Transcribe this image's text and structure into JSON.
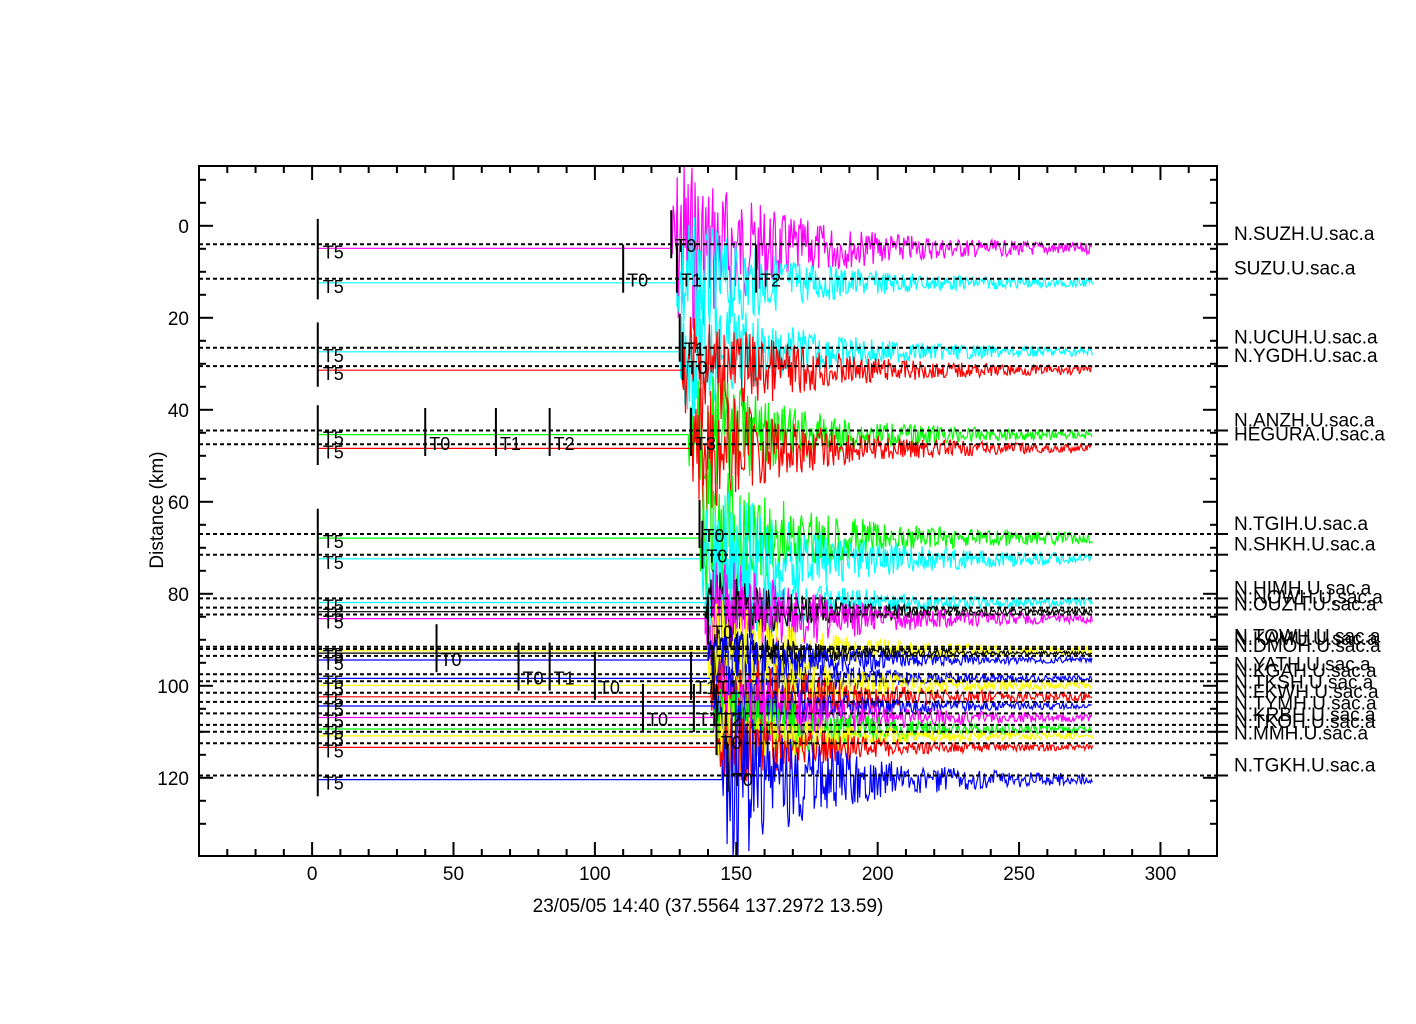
{
  "chart_data": {
    "type": "line",
    "title": "",
    "xlabel": "23/05/05  14:40  (37.5564  137.2972  13.59)",
    "ylabel": "Distance (km)",
    "xlim": [
      -40,
      320
    ],
    "ylim": [
      137,
      -13
    ],
    "x_ticks": [
      0,
      50,
      100,
      150,
      200,
      250,
      300
    ],
    "y_ticks": [
      0,
      20,
      40,
      60,
      80,
      100,
      120
    ],
    "colors": {
      "magenta": "#ff00ff",
      "cyan": "#00ffff",
      "red": "#ff0000",
      "green": "#00ff00",
      "blue": "#0000ff",
      "yellow": "#ffff00",
      "black": "#000000"
    },
    "series": [
      {
        "name": "N.SUZH.U.sac.a",
        "distance": 4,
        "color": "magenta",
        "onset": 127,
        "amp": 7
      },
      {
        "name": "SUZU.U.sac.a",
        "distance": 11.5,
        "color": "cyan",
        "onset": 129,
        "amp": 5
      },
      {
        "name": "N.UCUH.U.sac.a",
        "distance": 26.5,
        "color": "cyan",
        "onset": 130,
        "amp": 5
      },
      {
        "name": "N.YGDH.U.sac.a",
        "distance": 30.5,
        "color": "red",
        "onset": 131,
        "amp": 5
      },
      {
        "name": "N.ANZH.U.sac.a",
        "distance": 44.5,
        "color": "green",
        "onset": 133,
        "amp": 5
      },
      {
        "name": "HEGURA.U.sac.a",
        "distance": 47.5,
        "color": "red",
        "onset": 134,
        "amp": 5
      },
      {
        "name": "N.TGIH.U.sac.a",
        "distance": 67,
        "color": "green",
        "onset": 137,
        "amp": 6
      },
      {
        "name": "N.SHKH.U.sac.a",
        "distance": 71.5,
        "color": "cyan",
        "onset": 138,
        "amp": 6
      },
      {
        "name": "N.HIMH.U.sac.a",
        "distance": 81,
        "color": "cyan",
        "onset": 139,
        "amp": 4
      },
      {
        "name": "N.NOWH.U.sac.a",
        "distance": 83,
        "color": "black",
        "onset": 139,
        "amp": 3
      },
      {
        "name": "N.OUZH.U.sac.a",
        "distance": 84.5,
        "color": "magenta",
        "onset": 139,
        "amp": 5
      },
      {
        "name": "N.TOWH.U.sac.a",
        "distance": 91.5,
        "color": "yellow",
        "onset": 140,
        "amp": 4
      },
      {
        "name": "N.KAMU.U.sac.a",
        "distance": 92,
        "color": "black",
        "onset": 140,
        "amp": 2
      },
      {
        "name": "N.DMOH.U.sac.a",
        "distance": 93.5,
        "color": "blue",
        "onset": 140,
        "amp": 3
      },
      {
        "name": "N.YATH.U.sac.a",
        "distance": 97.5,
        "color": "blue",
        "onset": 141,
        "amp": 3
      },
      {
        "name": "N.KGAH.U.sac.a",
        "distance": 99,
        "color": "yellow",
        "onset": 141,
        "amp": 4
      },
      {
        "name": "N.TKSH.U.sac.a",
        "distance": 101.5,
        "color": "red",
        "onset": 141,
        "amp": 4
      },
      {
        "name": "N.FKWH.U.sac.a",
        "distance": 103.5,
        "color": "blue",
        "onset": 142,
        "amp": 3
      },
      {
        "name": "N.TYMH.U.sac.a",
        "distance": 106,
        "color": "magenta",
        "onset": 142,
        "amp": 4
      },
      {
        "name": "N.KRBH.U.sac.a",
        "distance": 108.5,
        "color": "green",
        "onset": 142,
        "amp": 4
      },
      {
        "name": "N.TKOH.U.sac.a",
        "distance": 110,
        "color": "yellow",
        "onset": 143,
        "amp": 3
      },
      {
        "name": "N.MMH.U.sac.a",
        "distance": 112.5,
        "color": "red",
        "onset": 143,
        "amp": 3
      },
      {
        "name": "N.TGKH.U.sac.a",
        "distance": 119.5,
        "color": "blue",
        "onset": 145,
        "amp": 6
      }
    ],
    "annotations": [
      {
        "label": "T0",
        "time": 127,
        "distance": 4
      },
      {
        "label": "T0",
        "time": 110,
        "distance": 11.5
      },
      {
        "label": "T1",
        "time": 129,
        "distance": 11.5
      },
      {
        "label": "T2",
        "time": 157,
        "distance": 11.5
      },
      {
        "label": "T1",
        "time": 130,
        "distance": 26.5
      },
      {
        "label": "T0",
        "time": 131,
        "distance": 30.5
      },
      {
        "label": "T0",
        "time": 40,
        "distance": 47
      },
      {
        "label": "T1",
        "time": 65,
        "distance": 47
      },
      {
        "label": "T2",
        "time": 84,
        "distance": 47
      },
      {
        "label": "T3",
        "time": 134,
        "distance": 47
      },
      {
        "label": "T0",
        "time": 137,
        "distance": 67
      },
      {
        "label": "T0",
        "time": 138,
        "distance": 71.5
      },
      {
        "label": "T0",
        "time": 140,
        "distance": 88
      },
      {
        "label": "T0",
        "time": 44,
        "distance": 94
      },
      {
        "label": "T0",
        "time": 73,
        "distance": 98
      },
      {
        "label": "T1",
        "time": 84,
        "distance": 98
      },
      {
        "label": "T0",
        "time": 100,
        "distance": 100
      },
      {
        "label": "T1",
        "time": 134,
        "distance": 100
      },
      {
        "label": "T1",
        "time": 142,
        "distance": 100
      },
      {
        "label": "T0",
        "time": 117,
        "distance": 107
      },
      {
        "label": "T1",
        "time": 135,
        "distance": 107
      },
      {
        "label": "T2",
        "time": 143,
        "distance": 107
      },
      {
        "label": "T0",
        "time": 143,
        "distance": 112
      },
      {
        "label": "T0",
        "time": 147,
        "distance": 120
      }
    ],
    "origin_label": "T5",
    "grid": false,
    "legend": "right"
  }
}
